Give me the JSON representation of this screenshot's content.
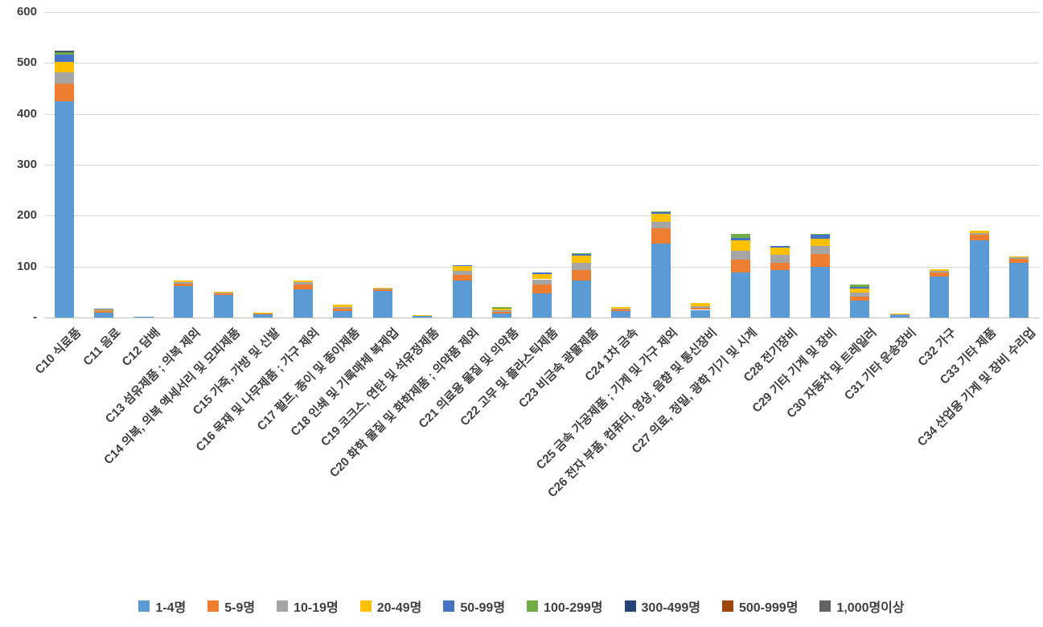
{
  "chart_data": {
    "type": "bar",
    "stacked": true,
    "title": "",
    "xlabel": "",
    "ylabel": "",
    "ylim": [
      0,
      600
    ],
    "grid": true,
    "legend_position": "bottom",
    "y_ticks": [
      {
        "value": 600,
        "label": "600"
      },
      {
        "value": 500,
        "label": "500"
      },
      {
        "value": 400,
        "label": "400"
      },
      {
        "value": 300,
        "label": "300"
      },
      {
        "value": 200,
        "label": "200"
      },
      {
        "value": 100,
        "label": "100"
      },
      {
        "value": 0,
        "label": "-"
      }
    ],
    "categories": [
      "C10 식료품",
      "C11 음료",
      "C12 담배",
      "C13 섬유제품 ; 의복 제외",
      "C14 의복, 의복 액세서리 및 모피제품",
      "C15 가죽, 가방 및 신발",
      "C16 목재 및 나무제품 ; 가구 제외",
      "C17 펄프, 종이 및 종이제품",
      "C18 인쇄 및 기록매체 복제업",
      "C19 코크스, 연탄 및 석유정제품",
      "C20 화학 물질 및 화학제품 ; 의약품 제외",
      "C21 의료용 물질 및 의약품",
      "C22 고무 및 플라스틱제품",
      "C23 비금속 광물제품",
      "C24 1차 금속",
      "C25 금속 가공제품 ; 기계 및 가구 제외",
      "C26 전자 부품, 컴퓨터, 영상, 음향 및 통신장비",
      "C27 의료, 정밀, 광학 기기 및 시계",
      "C28 전기장비",
      "C29 기타 기계 및 장비",
      "C30 자동차 및 트레일러",
      "C31 기타 운송장비",
      "C32 가구",
      "C33 기타 제품",
      "C34 산업용 기계 및 장비 수리업"
    ],
    "series": [
      {
        "name": "1-4명",
        "color": "#5B9BD5",
        "values": [
          425,
          10,
          1,
          62,
          44,
          7,
          55,
          12,
          52,
          3,
          72,
          8,
          48,
          73,
          12,
          145,
          15,
          88,
          93,
          100,
          33,
          5,
          80,
          152,
          108
        ]
      },
      {
        "name": "5-9명",
        "color": "#ED7D31",
        "values": [
          35,
          2,
          0,
          5,
          3,
          1,
          10,
          6,
          4,
          1,
          12,
          3,
          17,
          20,
          4,
          30,
          4,
          25,
          15,
          25,
          8,
          1,
          8,
          10,
          7
        ]
      },
      {
        "name": "10-19명",
        "color": "#A5A5A5",
        "values": [
          22,
          2,
          0,
          3,
          2,
          1,
          4,
          3,
          1,
          0,
          8,
          3,
          10,
          15,
          2,
          13,
          3,
          18,
          15,
          15,
          8,
          1,
          4,
          4,
          3
        ]
      },
      {
        "name": "20-49명",
        "color": "#FFC000",
        "values": [
          20,
          3,
          0,
          2,
          1,
          1,
          4,
          4,
          1,
          1,
          9,
          4,
          11,
          14,
          2,
          16,
          6,
          20,
          15,
          15,
          8,
          1,
          3,
          4,
          2
        ]
      },
      {
        "name": "50-99명",
        "color": "#4472C4",
        "values": [
          15,
          1,
          0,
          0,
          0,
          0,
          0,
          0,
          0,
          0,
          1,
          0,
          2,
          3,
          0,
          3,
          0,
          5,
          2,
          8,
          3,
          0,
          0,
          0,
          0
        ]
      },
      {
        "name": "100-299명",
        "color": "#70AD47",
        "values": [
          4,
          0,
          0,
          0,
          0,
          0,
          0,
          0,
          0,
          0,
          0,
          2,
          0,
          1,
          0,
          1,
          0,
          9,
          0,
          2,
          5,
          0,
          0,
          0,
          0
        ]
      },
      {
        "name": "300-499명",
        "color": "#264478",
        "values": [
          2,
          0,
          0,
          0,
          0,
          0,
          0,
          0,
          0,
          0,
          0,
          0,
          0,
          0,
          0,
          0,
          0,
          0,
          0,
          0,
          0,
          0,
          0,
          0,
          0
        ]
      },
      {
        "name": "500-999명",
        "color": "#9E480E",
        "values": [
          1,
          0,
          0,
          0,
          0,
          0,
          0,
          0,
          0,
          0,
          0,
          0,
          0,
          0,
          0,
          0,
          0,
          0,
          0,
          0,
          0,
          0,
          0,
          0,
          0
        ]
      },
      {
        "name": "1,000명이상",
        "color": "#636363",
        "values": [
          1,
          0,
          0,
          0,
          0,
          0,
          0,
          0,
          0,
          0,
          0,
          0,
          0,
          0,
          0,
          0,
          0,
          0,
          0,
          0,
          0,
          0,
          0,
          0,
          0
        ]
      }
    ]
  },
  "legend": {
    "items": [
      "1-4명",
      "5-9명",
      "10-19명",
      "20-49명",
      "50-99명",
      "100-299명",
      "300-499명",
      "500-999명",
      "1,000명이상"
    ]
  }
}
